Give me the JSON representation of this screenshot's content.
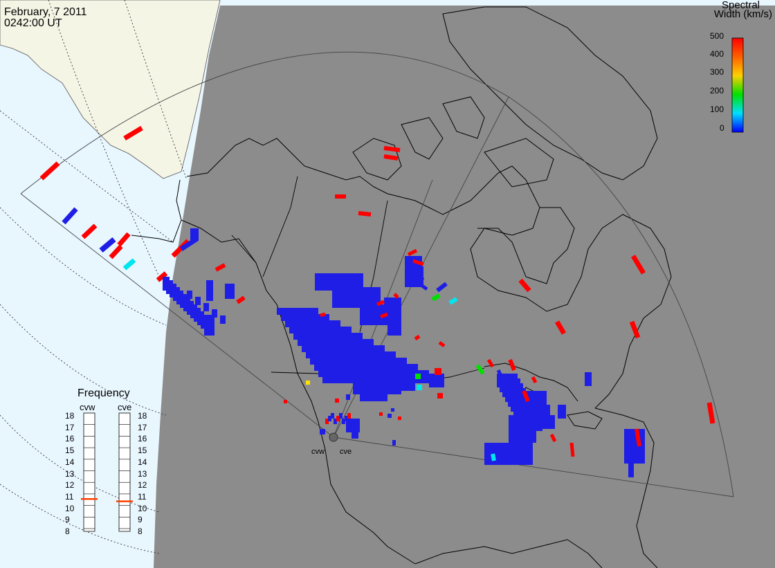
{
  "header": {
    "date": "February, 7 2011",
    "time": "0242:00 UT"
  },
  "colorbar": {
    "title_line1": "Spectral",
    "title_line2": "Width (km/s)",
    "ticks": [
      "500",
      "400",
      "300",
      "200",
      "100",
      "0"
    ],
    "range": [
      0,
      500
    ]
  },
  "frequency_panel": {
    "title": "Frequency",
    "radars": [
      {
        "name": "cvw",
        "value": 10.8
      },
      {
        "name": "cve",
        "value": 10.6
      }
    ],
    "scale": [
      "18",
      "17",
      "16",
      "15",
      "14",
      "13",
      "12",
      "11",
      "10",
      "9",
      "8"
    ]
  },
  "station_labels": [
    "cvw",
    "cve"
  ],
  "colors": {
    "night": "#8c8c8c",
    "ocean": "#e8f6fe",
    "land_day": "#f5f5e6",
    "red": "#ff0000",
    "blue": "#1e1ee6",
    "green": "#00e000",
    "cyan": "#00e6f0",
    "yellow": "#ffe000",
    "freq_marker": "#ff4000"
  }
}
